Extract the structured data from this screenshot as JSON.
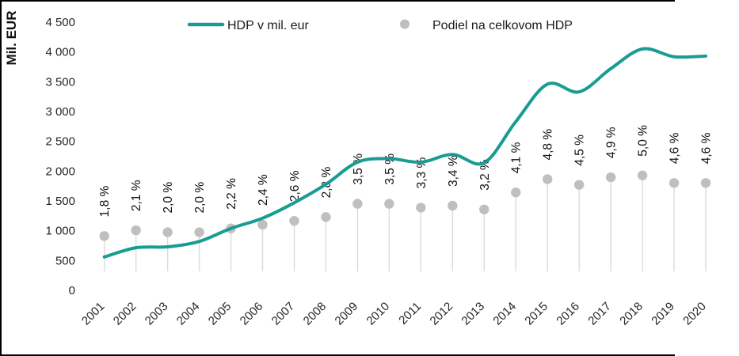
{
  "chart": {
    "y_axis_title": "Mil. EUR",
    "legend": {
      "line_label": "HDP v mil. eur",
      "dot_label": "Podiel na celkovom HDP"
    }
  },
  "colors": {
    "line": "#189C94",
    "dot": "#BFBFBF",
    "stem": "#DBDBDB",
    "axis_text": "#262626"
  },
  "chart_data": {
    "type": "line",
    "title": "",
    "ylabel": "Mil. EUR",
    "xlabel": "",
    "ylim": [
      0,
      4500
    ],
    "grid": false,
    "legend_position": "top",
    "y_ticks": [
      "4 500",
      "4 000",
      "3 500",
      "3 000",
      "2 500",
      "2 000",
      "1 500",
      "1 000",
      "500",
      "0"
    ],
    "categories": [
      "2001",
      "2002",
      "2003",
      "2004",
      "2005",
      "2006",
      "2007",
      "2008",
      "2009",
      "2010",
      "2011",
      "2012",
      "2013",
      "2014",
      "2015",
      "2016",
      "2017",
      "2018",
      "2019",
      "2020"
    ],
    "series": [
      {
        "name": "HDP v mil. eur",
        "type": "smooth-line",
        "color": "#189C94",
        "unit": "mil. EUR",
        "values": [
          560,
          715,
          730,
          820,
          1040,
          1210,
          1470,
          1780,
          2150,
          2210,
          2150,
          2280,
          2140,
          2830,
          3460,
          3330,
          3720,
          4050,
          3920,
          3930
        ]
      },
      {
        "name": "Podiel na celkovom HDP",
        "type": "lollipop-point",
        "color": "#BFBFBF",
        "unit": "%",
        "values": [
          1.8,
          2.1,
          2.0,
          2.0,
          2.2,
          2.4,
          2.6,
          2.8,
          3.5,
          3.5,
          3.3,
          3.4,
          3.2,
          4.1,
          4.8,
          4.5,
          4.9,
          5.0,
          4.6,
          4.6
        ],
        "labels": [
          "1,8 %",
          "2,1 %",
          "2,0 %",
          "2,0 %",
          "2,2 %",
          "2,4 %",
          "2,6 %",
          "2,8 %",
          "3,5 %",
          "3,5 %",
          "3,3 %",
          "3,4 %",
          "3,2 %",
          "4,1 %",
          "4,8 %",
          "4,5 %",
          "4,9 %",
          "5,0 %",
          "4,6 %",
          "4,6 %"
        ]
      }
    ]
  }
}
